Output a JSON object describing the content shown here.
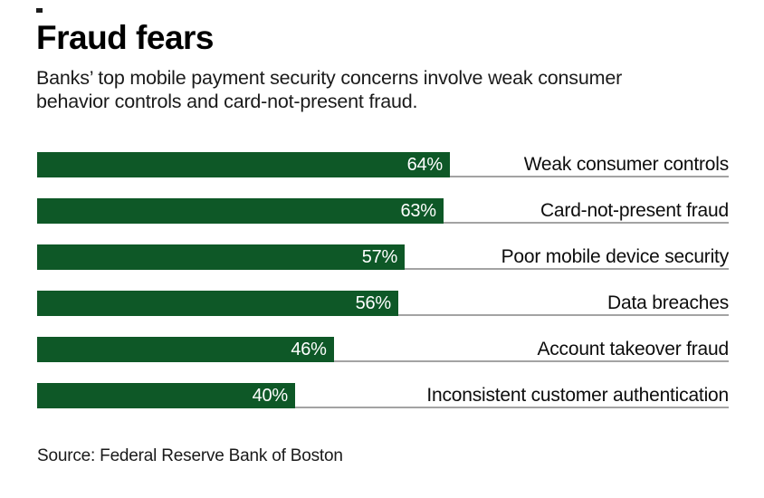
{
  "page": {
    "title": "Fraud fears",
    "subtitle": "Banks’ top mobile payment security concerns involve weak consumer behavior controls and card-not-present fraud.",
    "source": "Source: Federal Reserve Bank of Boston"
  },
  "colors": {
    "background": "#ffffff",
    "bar": "#0e5827",
    "baseline": "#a3a3a3",
    "value_label": "#ffffff",
    "text": "#111111"
  },
  "chart_data": {
    "type": "bar",
    "orientation": "horizontal",
    "title": "Fraud fears",
    "subtitle": "Banks’ top mobile payment security concerns involve weak consumer behavior controls and card-not-present fraud.",
    "source": "Source: Federal Reserve Bank of Boston",
    "categories": [
      "Weak consumer controls",
      "Card-not-present fraud",
      "Poor mobile device security",
      "Data breaches",
      "Account takeover fraud",
      "Inconsistent customer authentication"
    ],
    "values": [
      64,
      63,
      57,
      56,
      46,
      40
    ],
    "value_labels": [
      "64%",
      "63%",
      "57%",
      "56%",
      "46%",
      "40%"
    ],
    "xlabel": "",
    "ylabel": "",
    "xlim": [
      0,
      100
    ],
    "grid": false,
    "legend": false,
    "bar_color": "#0e5827",
    "value_label_position": "inside-end",
    "category_label_position": "right-aligned-outside"
  }
}
